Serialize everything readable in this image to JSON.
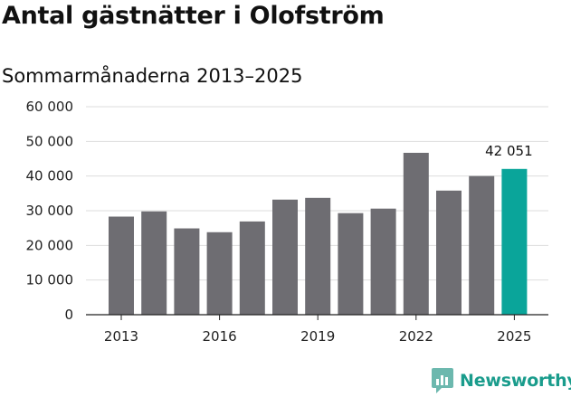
{
  "title": "Antal gästnätter i Olofström",
  "subtitle": "Sommarmånaderna 2013–2025",
  "brand": {
    "name": "Newsworthy",
    "logo_icon": "newsworthy-chart-bubble-icon"
  },
  "colors": {
    "bar": "#6e6d72",
    "highlight": "#0aa59a",
    "grid": "#dddddd",
    "axis": "#222222",
    "brand": "#1a9c8c"
  },
  "chart_data": {
    "type": "bar",
    "title": "Antal gästnätter i Olofström",
    "subtitle": "Sommarmånaderna 2013–2025",
    "categories": [
      "2013",
      "2014",
      "2015",
      "2016",
      "2017",
      "2018",
      "2019",
      "2020",
      "2021",
      "2022",
      "2023",
      "2024",
      "2025"
    ],
    "values": [
      28300,
      29800,
      24900,
      23800,
      26900,
      33200,
      33700,
      29300,
      30600,
      46700,
      35800,
      40000,
      42051
    ],
    "highlight_index": 12,
    "highlight_label": "42 051",
    "x_tick_labels": [
      "2013",
      "2016",
      "2019",
      "2022",
      "2025"
    ],
    "y_ticks": [
      0,
      10000,
      20000,
      30000,
      40000,
      50000,
      60000
    ],
    "y_tick_labels": [
      "0",
      "10 000",
      "20 000",
      "30 000",
      "40 000",
      "50 000",
      "60 000"
    ],
    "ylim": [
      0,
      60000
    ],
    "grid": true,
    "xlabel": "",
    "ylabel": ""
  }
}
